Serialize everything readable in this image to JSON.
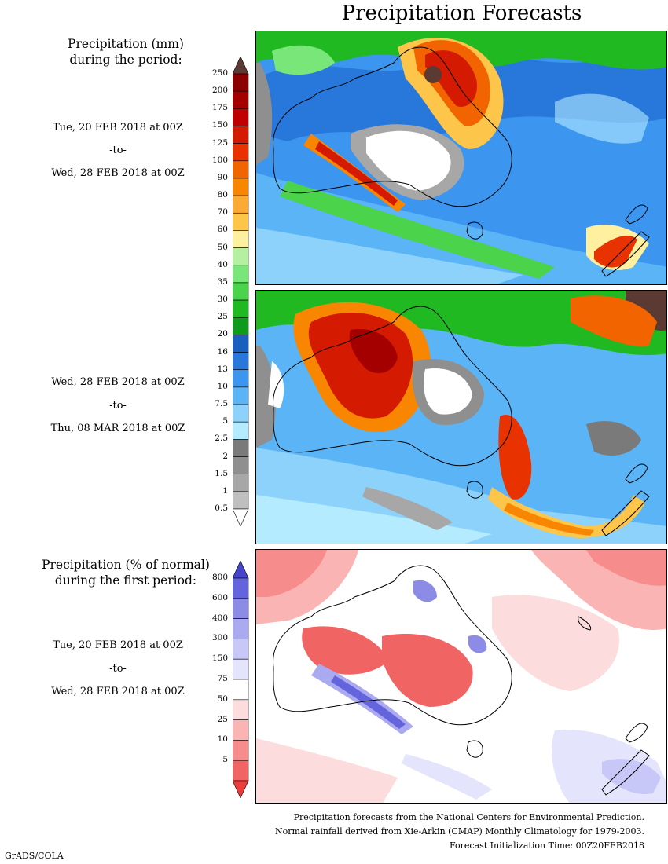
{
  "title": "Precipitation Forecasts",
  "legend_mm": {
    "heading": [
      "Precipitation (mm)",
      "during the period:"
    ],
    "labels": [
      "250",
      "200",
      "175",
      "150",
      "125",
      "100",
      "90",
      "80",
      "70",
      "60",
      "50",
      "40",
      "35",
      "30",
      "25",
      "20",
      "16",
      "13",
      "10",
      "7.5",
      "5",
      "2.5",
      "2",
      "1.5",
      "1",
      "0.5"
    ],
    "colors": [
      "#8b0000",
      "#a50000",
      "#c00000",
      "#d41a00",
      "#e83200",
      "#f26400",
      "#f98600",
      "#fbaa33",
      "#fdc64a",
      "#fff0a0",
      "#b4f0a0",
      "#78e678",
      "#4bd34b",
      "#21b921",
      "#0e9a1b",
      "#1a5fbe",
      "#2878dc",
      "#3c96f0",
      "#5ab4f5",
      "#8cd2fa",
      "#b4ebff",
      "#7a7a7a",
      "#8f8f8f",
      "#a7a7a7",
      "#bfbfbf"
    ],
    "top_cap_color": "#5a3a32",
    "bottom_cap_color": "#ffffff"
  },
  "legend_pct": {
    "heading": [
      "Precipitation (% of normal)",
      "during the first period:"
    ],
    "labels": [
      "800",
      "600",
      "400",
      "300",
      "150",
      "75",
      "50",
      "25",
      "10",
      "5"
    ],
    "colors": [
      "#6464dc",
      "#8c8ce6",
      "#aaaaf0",
      "#c8c8f8",
      "#e4e4fc",
      "#ffffff",
      "#fcdcdc",
      "#fab4b4",
      "#f68c8c",
      "#f06464"
    ],
    "top_cap_color": "#4646cc",
    "bottom_cap_color": "#ec3c3c"
  },
  "periods": [
    {
      "start": "Tue, 20 FEB 2018 at 00Z",
      "sep": "-to-",
      "end": "Wed, 28 FEB 2018 at 00Z"
    },
    {
      "start": "Wed, 28 FEB 2018 at 00Z",
      "sep": "-to-",
      "end": "Thu, 08 MAR 2018 at 00Z"
    },
    {
      "start": "Tue, 20 FEB 2018 at 00Z",
      "sep": "-to-",
      "end": "Wed, 28 FEB 2018 at 00Z"
    }
  ],
  "footer": {
    "line1": "Precipitation forecasts from the National Centers for Environmental Prediction.",
    "line2": "Normal rainfall derived from Xie-Arkin (CMAP) Monthly Climatology for 1979-2003.",
    "line3": "Forecast Initialization Time: 00Z20FEB2018"
  },
  "credit": "GrADS/COLA"
}
